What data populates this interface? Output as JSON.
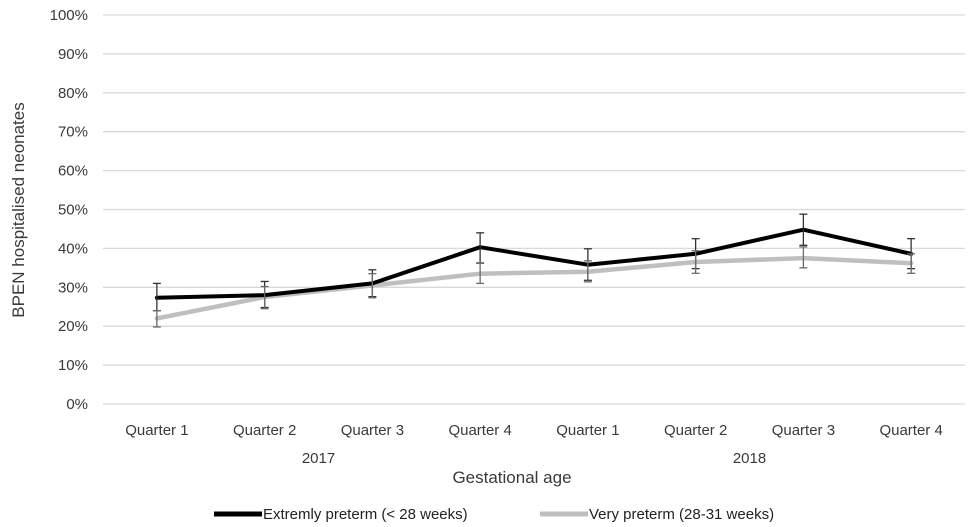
{
  "chart_data": {
    "type": "line",
    "ylabel": "BPEN hospitalised neonates",
    "xlabel": "Gestational age",
    "ylim": [
      0,
      100
    ],
    "y_ticks": [
      "0%",
      "10%",
      "20%",
      "30%",
      "40%",
      "50%",
      "60%",
      "70%",
      "80%",
      "90%",
      "100%"
    ],
    "categories": [
      "Quarter 1",
      "Quarter 2",
      "Quarter 3",
      "Quarter 4",
      "Quarter 1",
      "Quarter 2",
      "Quarter 3",
      "Quarter 4"
    ],
    "groups": [
      {
        "label": "2017",
        "categories": [
          0,
          1,
          2,
          3
        ]
      },
      {
        "label": "2018",
        "categories": [
          4,
          5,
          6,
          7
        ]
      }
    ],
    "grid": true,
    "legend_position": "bottom",
    "series": [
      {
        "name": "Extremly preterm (< 28 weeks)",
        "color": "#000000",
        "values": [
          27.3,
          28.0,
          31.0,
          40.3,
          35.8,
          38.6,
          44.8,
          38.6
        ],
        "error_low": [
          24.0,
          24.8,
          27.6,
          36.2,
          31.8,
          34.8,
          40.8,
          34.8
        ],
        "error_high": [
          31.0,
          31.5,
          34.5,
          44.0,
          39.9,
          42.5,
          48.8,
          42.5
        ]
      },
      {
        "name": "Very preterm (28-31 weeks)",
        "color": "#bfbfbf",
        "values": [
          22.0,
          27.5,
          30.5,
          33.5,
          34.0,
          36.5,
          37.5,
          36.2
        ],
        "error_low": [
          19.8,
          24.5,
          27.3,
          31.0,
          31.4,
          33.6,
          35.0,
          33.6
        ],
        "error_high": [
          24.0,
          30.2,
          33.5,
          36.3,
          36.8,
          39.4,
          40.4,
          38.6
        ]
      }
    ]
  }
}
